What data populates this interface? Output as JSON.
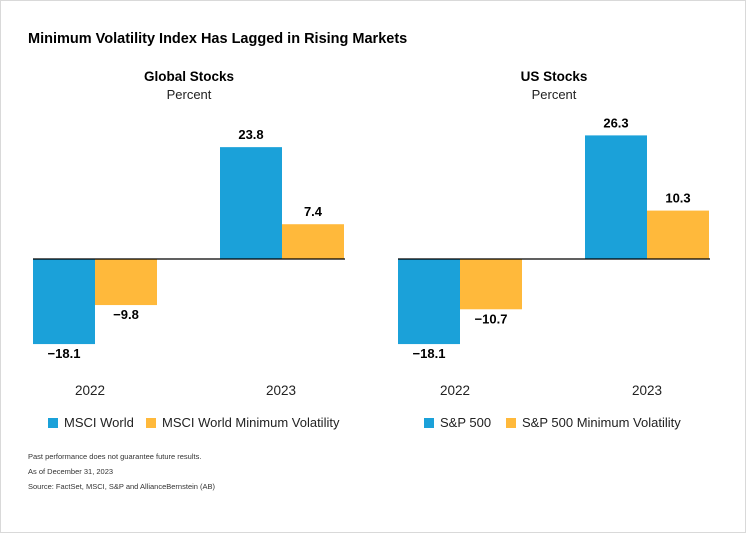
{
  "title": "Minimum Volatility Index Has Lagged in Rising Markets",
  "colors": {
    "series1": "#1ba1d9",
    "series2": "#ffb93b",
    "baseline": "#000000"
  },
  "chart_data": [
    {
      "type": "bar",
      "title": "Global Stocks",
      "subtitle": "Percent",
      "categories": [
        "2022",
        "2023"
      ],
      "series": [
        {
          "name": "MSCI World",
          "values": [
            -18.1,
            23.8
          ],
          "labels": [
            "−18.1",
            "23.8"
          ]
        },
        {
          "name": "MSCI World Minimum Volatility",
          "values": [
            -9.8,
            7.4
          ],
          "labels": [
            "−9.8",
            "7.4"
          ]
        }
      ],
      "legend": "bottom",
      "grid": false
    },
    {
      "type": "bar",
      "title": "US Stocks",
      "subtitle": "Percent",
      "categories": [
        "2022",
        "2023"
      ],
      "series": [
        {
          "name": "S&P 500",
          "values": [
            -18.1,
            26.3
          ],
          "labels": [
            "−18.1",
            "26.3"
          ]
        },
        {
          "name": "S&P 500 Minimum Volatility",
          "values": [
            -10.7,
            10.3
          ],
          "labels": [
            "−10.7",
            "10.3"
          ]
        }
      ],
      "legend": "bottom",
      "grid": false
    }
  ],
  "notes": [
    "Past performance does not guarantee future results.",
    "As of December 31, 2023",
    "Source: FactSet, MSCI, S&P and AllianceBernstein (AB)"
  ]
}
